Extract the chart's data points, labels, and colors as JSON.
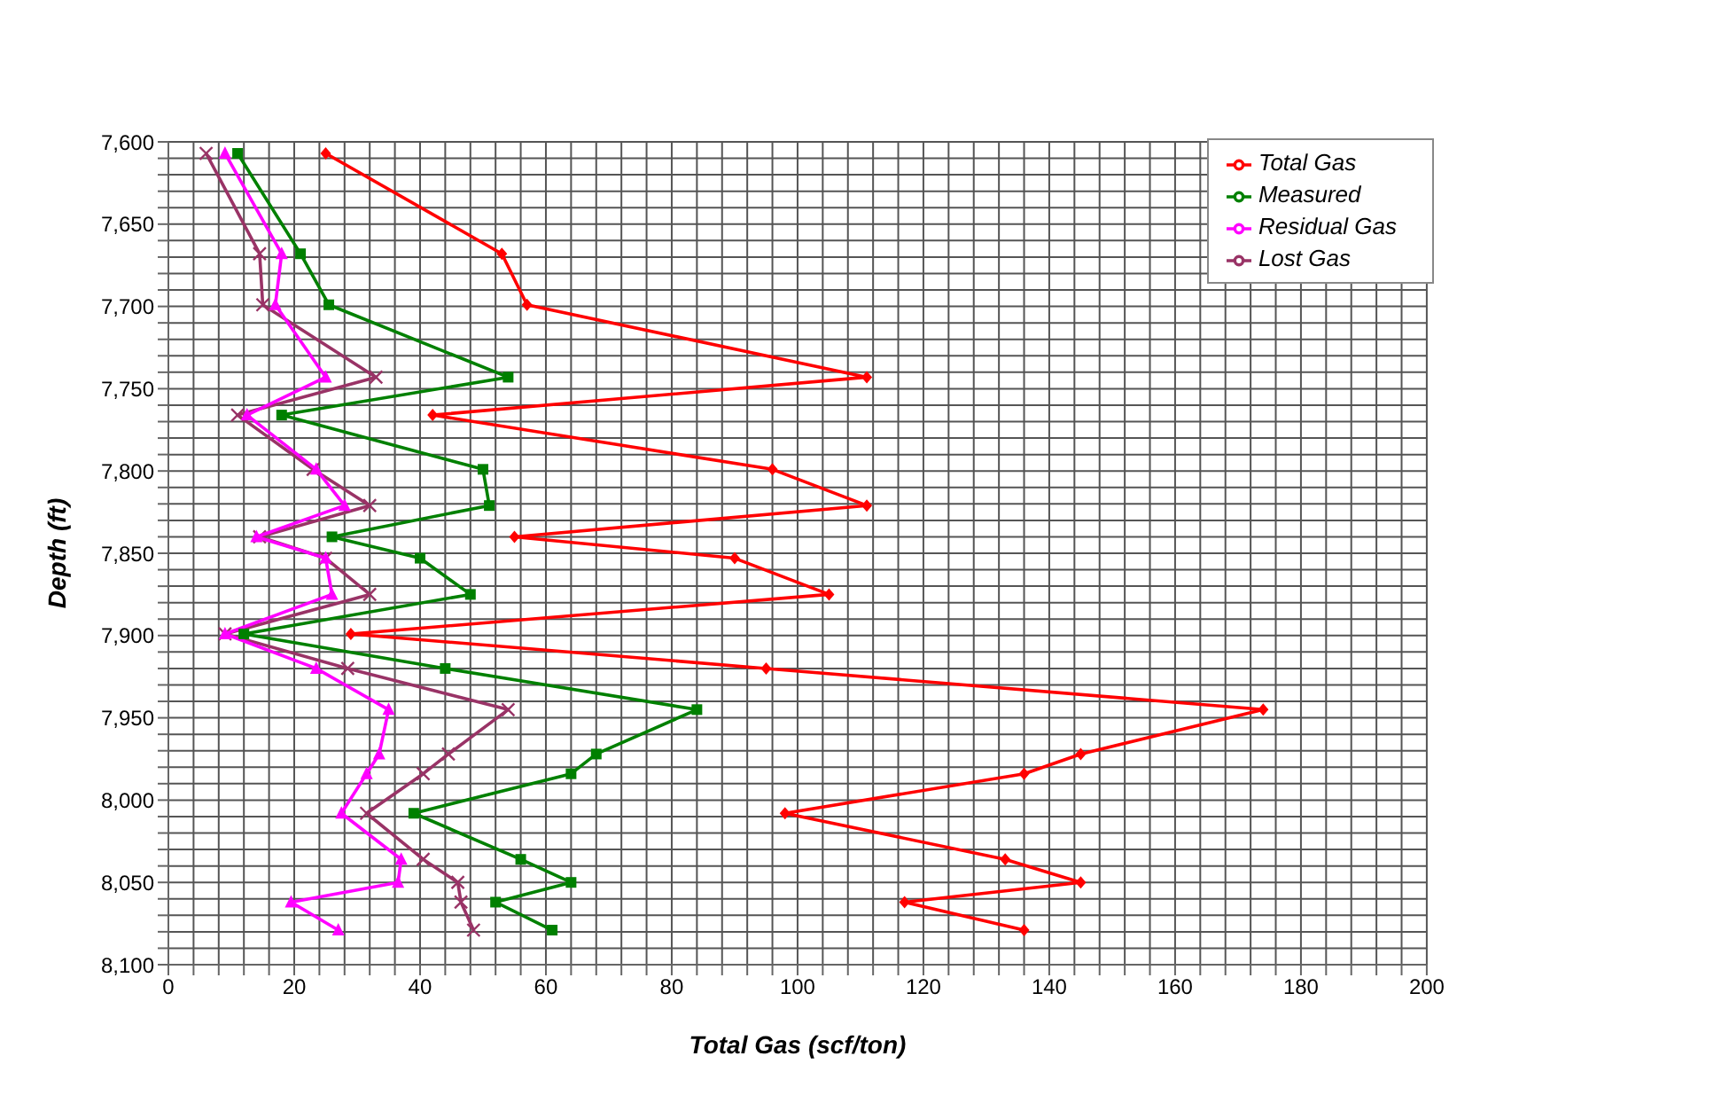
{
  "chart_data": {
    "type": "line",
    "orientation": "horizontal",
    "xlabel": "Total Gas (scf/ton)",
    "ylabel": "Depth (ft)",
    "grid": true,
    "legend": "top right",
    "x": [
      7607,
      7668,
      7699,
      7743,
      7766,
      7799,
      7821,
      7840,
      7853,
      7875,
      7899,
      7920,
      7945,
      7972,
      7984,
      8008,
      8036,
      8050,
      8062,
      8079
    ],
    "series": [
      {
        "name": "Total Gas",
        "color": "#ff0000",
        "marker": "diamond",
        "values": [
          25,
          53,
          57,
          111,
          42,
          96,
          111,
          55,
          90,
          105,
          29,
          95,
          174,
          145,
          136,
          98,
          133,
          145,
          117,
          136
        ]
      },
      {
        "name": "Measured",
        "color": "#008000",
        "marker": "square",
        "values": [
          11,
          21,
          25.5,
          54,
          18,
          50,
          51,
          26,
          40,
          48,
          12,
          44,
          84,
          68,
          64,
          39,
          56,
          64,
          52,
          61
        ]
      },
      {
        "name": "Residual Gas",
        "color": "#ff00ff",
        "marker": "triangle",
        "values": [
          9,
          18,
          17,
          25,
          12.5,
          23.5,
          28,
          14,
          25,
          26,
          9,
          23.5,
          35,
          33.5,
          31.5,
          27.5,
          37,
          36.5,
          19.5,
          27
        ]
      },
      {
        "name": "Lost Gas",
        "color": "#993366",
        "marker": "cross",
        "values": [
          6,
          14.5,
          15,
          33,
          11,
          23,
          32,
          14.5,
          25,
          32,
          9,
          28.5,
          54,
          44.5,
          40.5,
          31.5,
          40.5,
          46,
          46.5,
          48.5
        ]
      }
    ],
    "xlim": [
      0,
      200
    ],
    "xticks": [
      0,
      {
        "value": 4,
        "label": null
      },
      {
        "value": 8,
        "label": null
      },
      {
        "value": 12,
        "label": null
      },
      {
        "value": 16,
        "label": null
      },
      20,
      {
        "value": 24,
        "label": null
      },
      {
        "value": 28,
        "label": null
      },
      {
        "value": 32,
        "label": null
      },
      {
        "value": 36,
        "label": null
      },
      40,
      {
        "value": 44,
        "label": null
      },
      {
        "value": 48,
        "label": null
      },
      {
        "value": 52,
        "label": null
      },
      {
        "value": 56,
        "label": null
      },
      60,
      {
        "value": 64,
        "label": null
      },
      {
        "value": 68,
        "label": null
      },
      {
        "value": 72,
        "label": null
      },
      {
        "value": 76,
        "label": null
      },
      80,
      {
        "value": 84,
        "label": null
      },
      {
        "value": 88,
        "label": null
      },
      {
        "value": 92,
        "label": null
      },
      {
        "value": 96,
        "label": null
      },
      100,
      {
        "value": 104,
        "label": null
      },
      {
        "value": 108,
        "label": null
      },
      {
        "value": 112,
        "label": null
      },
      {
        "value": 116,
        "label": null
      },
      120,
      {
        "value": 124,
        "label": null
      },
      {
        "value": 128,
        "label": null
      },
      {
        "value": 132,
        "label": null
      },
      {
        "value": 136,
        "label": null
      },
      140,
      {
        "value": 144,
        "label": null
      },
      {
        "value": 148,
        "label": null
      },
      {
        "value": 152,
        "label": null
      },
      {
        "value": 156,
        "label": null
      },
      160,
      {
        "value": 164,
        "label": null
      },
      {
        "value": 168,
        "label": null
      },
      {
        "value": 172,
        "label": null
      },
      {
        "value": 176,
        "label": null
      },
      180,
      {
        "value": 184,
        "label": null
      },
      {
        "value": 188,
        "label": null
      },
      {
        "value": 192,
        "label": null
      },
      {
        "value": 196,
        "label": null
      },
      200
    ],
    "ylim": [
      8100,
      7600
    ],
    "yticks": [
      {
        "value": 7600,
        "label": "7,600"
      },
      {
        "value": 7610,
        "label": null
      },
      {
        "value": 7620,
        "label": null
      },
      {
        "value": 7630,
        "label": null
      },
      {
        "value": 7640,
        "label": null
      },
      {
        "value": 7650,
        "label": "7,650"
      },
      {
        "value": 7660,
        "label": null
      },
      {
        "value": 7670,
        "label": null
      },
      {
        "value": 7680,
        "label": null
      },
      {
        "value": 7690,
        "label": null
      },
      {
        "value": 7700,
        "label": "7,700"
      },
      {
        "value": 7710,
        "label": null
      },
      {
        "value": 7720,
        "label": null
      },
      {
        "value": 7730,
        "label": null
      },
      {
        "value": 7740,
        "label": null
      },
      {
        "value": 7750,
        "label": "7,750"
      },
      {
        "value": 7760,
        "label": null
      },
      {
        "value": 7770,
        "label": null
      },
      {
        "value": 7780,
        "label": null
      },
      {
        "value": 7790,
        "label": null
      },
      {
        "value": 7800,
        "label": "7,800"
      },
      {
        "value": 7810,
        "label": null
      },
      {
        "value": 7820,
        "label": null
      },
      {
        "value": 7830,
        "label": null
      },
      {
        "value": 7840,
        "label": null
      },
      {
        "value": 7850,
        "label": "7,850"
      },
      {
        "value": 7860,
        "label": null
      },
      {
        "value": 7870,
        "label": null
      },
      {
        "value": 7880,
        "label": null
      },
      {
        "value": 7890,
        "label": null
      },
      {
        "value": 7900,
        "label": "7,900"
      },
      {
        "value": 7910,
        "label": null
      },
      {
        "value": 7920,
        "label": null
      },
      {
        "value": 7930,
        "label": null
      },
      {
        "value": 7940,
        "label": null
      },
      {
        "value": 7950,
        "label": "7,950"
      },
      {
        "value": 7960,
        "label": null
      },
      {
        "value": 7970,
        "label": null
      },
      {
        "value": 7980,
        "label": null
      },
      {
        "value": 7990,
        "label": null
      },
      {
        "value": 8000,
        "label": "8,000"
      },
      {
        "value": 8010,
        "label": null
      },
      {
        "value": 8020,
        "label": null
      },
      {
        "value": 8030,
        "label": null
      },
      {
        "value": 8040,
        "label": null
      },
      {
        "value": 8050,
        "label": "8,050"
      },
      {
        "value": 8060,
        "label": null
      },
      {
        "value": 8070,
        "label": null
      },
      {
        "value": 8080,
        "label": null
      },
      {
        "value": 8090,
        "label": null
      },
      {
        "value": 8100,
        "label": "8,100"
      }
    ]
  }
}
